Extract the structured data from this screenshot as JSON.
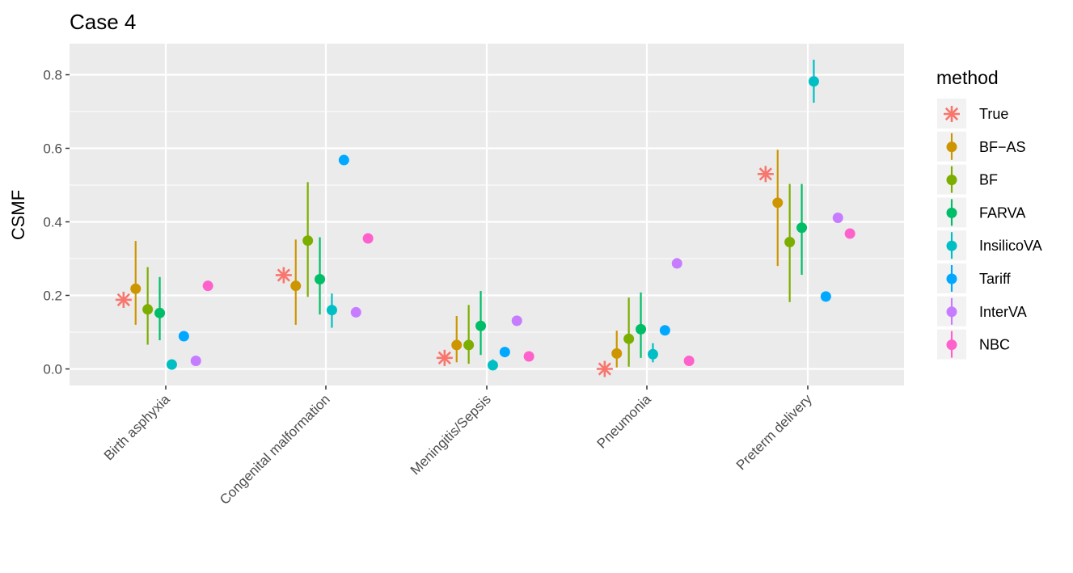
{
  "chart_data": {
    "type": "scatter",
    "title": "Case 4",
    "xlabel": "",
    "ylabel": "CSMF",
    "ylim": [
      -0.04,
      0.88
    ],
    "y_ticks": [
      0.0,
      0.2,
      0.4,
      0.6,
      0.8
    ],
    "y_tick_labels": [
      "0.0",
      "0.2",
      "0.4",
      "0.6",
      "0.8"
    ],
    "categories": [
      "Birth asphyxia",
      "Congenital malformation",
      "Meningitis/Sepsis",
      "Pneumonia",
      "Preterm delivery"
    ],
    "grid": true,
    "legend_title": "method",
    "legend_position": "right",
    "series": [
      {
        "name": "True",
        "color": "#F8766D",
        "marker": "asterisk",
        "values": [
          0.188,
          0.255,
          0.03,
          0.0,
          0.53
        ],
        "lower": null,
        "upper": null
      },
      {
        "name": "BF−AS",
        "color": "#CD9600",
        "marker": "circle",
        "values": [
          0.218,
          0.226,
          0.065,
          0.042,
          0.452
        ],
        "lower": [
          0.12,
          0.12,
          0.018,
          0.004,
          0.28
        ],
        "upper": [
          0.348,
          0.352,
          0.144,
          0.104,
          0.596
        ]
      },
      {
        "name": "BF",
        "color": "#7CAE00",
        "marker": "circle",
        "values": [
          0.162,
          0.349,
          0.065,
          0.082,
          0.345
        ],
        "lower": [
          0.066,
          0.196,
          0.014,
          0.006,
          0.182
        ],
        "upper": [
          0.277,
          0.508,
          0.174,
          0.194,
          0.503
        ]
      },
      {
        "name": "FARVA",
        "color": "#00BE67",
        "marker": "circle",
        "values": [
          0.152,
          0.244,
          0.117,
          0.108,
          0.384
        ],
        "lower": [
          0.078,
          0.148,
          0.038,
          0.03,
          0.256
        ],
        "upper": [
          0.25,
          0.358,
          0.212,
          0.208,
          0.503
        ]
      },
      {
        "name": "InsilicoVA",
        "color": "#00BFC4",
        "marker": "circle",
        "values": [
          0.012,
          0.16,
          0.01,
          0.04,
          0.782
        ],
        "lower": [
          0.004,
          0.112,
          0.003,
          0.018,
          0.724
        ],
        "upper": [
          0.022,
          0.205,
          0.026,
          0.07,
          0.841
        ]
      },
      {
        "name": "Tariff",
        "color": "#00A9FF",
        "marker": "circle",
        "values": [
          0.089,
          0.568,
          0.046,
          0.105,
          0.197
        ],
        "lower": null,
        "upper": null
      },
      {
        "name": "InterVA",
        "color": "#C77CFF",
        "marker": "circle",
        "values": [
          0.022,
          0.154,
          0.131,
          0.287,
          0.411
        ],
        "lower": null,
        "upper": null
      },
      {
        "name": "NBC",
        "color": "#FF61CC",
        "marker": "circle",
        "values": [
          0.226,
          0.355,
          0.034,
          0.022,
          0.368
        ],
        "lower": null,
        "upper": null
      }
    ]
  }
}
